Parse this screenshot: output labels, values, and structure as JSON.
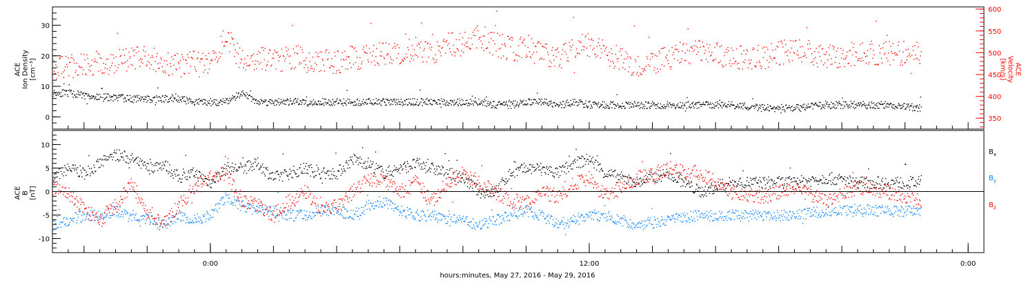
{
  "chart_data": [
    {
      "type": "scatter",
      "panel": "top",
      "ylabel_left": [
        "ACE",
        "Ion Density",
        "[cm⁻³]"
      ],
      "ylabel_right": [
        "ACE",
        "Velocity",
        "[km/s]"
      ],
      "ylim_left": [
        -4,
        36
      ],
      "ylim_right": [
        325,
        605
      ],
      "yticks_left": [
        0,
        10,
        20,
        30
      ],
      "yticks_right": [
        350,
        400,
        450,
        500,
        550,
        600
      ],
      "series": [
        {
          "name": "",
          "axis": "left",
          "color": "#000000",
          "x_hours": [
            -20,
            -18,
            -16,
            -14,
            -12,
            -10,
            -8,
            -6,
            -4,
            -2,
            0,
            2,
            4,
            6,
            8,
            10,
            12,
            14,
            16,
            18,
            20,
            22,
            24,
            26,
            28,
            30,
            32,
            34,
            36,
            38,
            40,
            42,
            44,
            46,
            48,
            50,
            54,
            58,
            62,
            66,
            70,
            74,
            78,
            82,
            86,
            90
          ],
          "values": [
            8,
            8,
            7,
            6.5,
            6.5,
            6,
            6,
            6,
            6,
            5,
            5,
            5,
            8,
            5,
            5,
            5,
            5,
            5,
            5,
            5,
            5,
            5,
            5,
            5,
            5,
            5,
            5,
            5,
            4,
            4,
            5,
            5,
            4,
            5,
            4,
            4,
            4,
            4,
            4,
            4,
            3,
            3,
            4,
            4,
            4,
            3
          ]
        },
        {
          "name": "",
          "axis": "right",
          "color": "#ff0000",
          "x_hours": [
            -20,
            -18,
            -16,
            -14,
            -12,
            -10,
            -8,
            -6,
            -4,
            -2,
            0,
            2,
            4,
            6,
            8,
            10,
            12,
            14,
            16,
            18,
            20,
            22,
            24,
            26,
            28,
            30,
            32,
            34,
            36,
            38,
            40,
            42,
            44,
            46,
            48,
            50,
            54,
            58,
            62,
            66,
            70,
            74,
            78,
            82,
            86,
            90
          ],
          "values": [
            460,
            470,
            470,
            475,
            480,
            490,
            490,
            480,
            470,
            480,
            480,
            540,
            480,
            490,
            480,
            490,
            490,
            480,
            480,
            490,
            490,
            500,
            500,
            510,
            500,
            520,
            520,
            540,
            520,
            510,
            510,
            500,
            490,
            510,
            520,
            500,
            470,
            490,
            510,
            490,
            490,
            510,
            490,
            500,
            500,
            500
          ]
        }
      ]
    },
    {
      "type": "scatter",
      "panel": "bottom",
      "ylabel_left": [
        "ACE",
        "B",
        "[nT]"
      ],
      "ylim": [
        -13,
        13
      ],
      "yticks": [
        -10,
        -5,
        0,
        5,
        10
      ],
      "zero_line": true,
      "series": [
        {
          "name": "B",
          "subscript": "x",
          "color": "#000000",
          "x_hours": [
            -20,
            -18,
            -16,
            -14,
            -12,
            -10,
            -8,
            -6,
            -4,
            -2,
            0,
            2,
            4,
            6,
            8,
            10,
            12,
            14,
            16,
            18,
            20,
            22,
            24,
            26,
            28,
            30,
            32,
            34,
            36,
            38,
            40,
            42,
            44,
            46,
            48,
            50,
            54,
            58,
            62,
            66,
            70,
            74,
            78,
            82,
            86,
            90
          ],
          "values": [
            3,
            5,
            4,
            6,
            8,
            7,
            5,
            6,
            3,
            4,
            2,
            5,
            5,
            6,
            3,
            4,
            5,
            4,
            4,
            7,
            6,
            4,
            5,
            6,
            5,
            4,
            3,
            0,
            0,
            4,
            5,
            5,
            4,
            6,
            7,
            4,
            2,
            4,
            0,
            2,
            2,
            2,
            3,
            2,
            2,
            2
          ]
        },
        {
          "name": "B",
          "subscript": "y",
          "color": "#0080ff",
          "x_hours": [
            -20,
            -18,
            -16,
            -14,
            -12,
            -10,
            -8,
            -6,
            -4,
            -2,
            0,
            2,
            4,
            6,
            8,
            10,
            12,
            14,
            16,
            18,
            20,
            22,
            24,
            26,
            28,
            30,
            32,
            34,
            36,
            38,
            40,
            42,
            44,
            46,
            48,
            50,
            54,
            58,
            62,
            66,
            70,
            74,
            78,
            82,
            86,
            90
          ],
          "values": [
            -7,
            -6,
            -5,
            -5,
            -4,
            -5,
            -6,
            -7,
            -5,
            -6,
            -5,
            -1,
            -3,
            -4,
            -4,
            -5,
            -5,
            -4,
            -4,
            -5,
            -3,
            -2,
            -4,
            -5,
            -5,
            -6,
            -6,
            -7,
            -6,
            -5,
            -4,
            -5,
            -7,
            -6,
            -5,
            -5,
            -7,
            -6,
            -5,
            -5,
            -5,
            -5,
            -4,
            -4,
            -4,
            -4
          ]
        },
        {
          "name": "B",
          "subscript": "z",
          "color": "#ff0000",
          "x_hours": [
            -20,
            -18,
            -16,
            -14,
            -12,
            -10,
            -8,
            -6,
            -4,
            -2,
            0,
            2,
            4,
            6,
            8,
            10,
            12,
            14,
            16,
            18,
            20,
            22,
            24,
            26,
            28,
            30,
            32,
            34,
            36,
            38,
            40,
            42,
            44,
            46,
            48,
            50,
            54,
            58,
            62,
            66,
            70,
            74,
            78,
            82,
            86,
            90
          ],
          "values": [
            1,
            0,
            -4,
            -6,
            -3,
            2,
            -5,
            -7,
            -3,
            1,
            3,
            4,
            -2,
            -3,
            -5,
            -2,
            0,
            -4,
            -3,
            0,
            3,
            2,
            0,
            2,
            -2,
            2,
            4,
            2,
            0,
            -2,
            -2,
            0,
            -1,
            2,
            3,
            -1,
            3,
            5,
            4,
            0,
            -1,
            1,
            -2,
            1,
            0,
            -2
          ]
        }
      ]
    }
  ],
  "x_axis": {
    "range_hours": [
      -20,
      98
    ],
    "tick_labels": [
      {
        "hour": 0,
        "text": "0:00"
      },
      {
        "hour": 48,
        "text": "12:00"
      },
      {
        "hour": 96,
        "text": "0:00"
      }
    ],
    "title": "hours:minutes, May 27, 2016 - May 29, 2016"
  },
  "colors": {
    "black": "#000000",
    "red": "#ff0000",
    "blue": "#0080ff",
    "frame": "#000000"
  }
}
